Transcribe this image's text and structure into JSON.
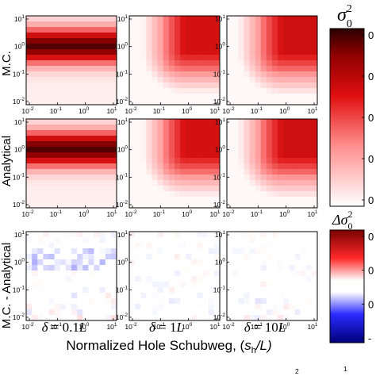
{
  "figure": {
    "xlabel_prefix": "Normalized Hole Schubweg, (",
    "xlabel_symbol": "s",
    "xlabel_sub": "h",
    "xlabel_suffix": "/L)",
    "rows": [
      "M.C.",
      "Analytical",
      "M.C. - Analytical"
    ],
    "columns": [
      {
        "delta": "δ",
        "eq": " = ",
        "value": "0.1",
        "unit": "L"
      },
      {
        "delta": "δ",
        "eq": " = ",
        "value": "1",
        "unit": "L"
      },
      {
        "delta": "δ",
        "eq": " = ",
        "value": "10",
        "unit": "L"
      }
    ],
    "colorbar_top": {
      "title": "σ",
      "sup": "2",
      "sub": "0",
      "ticks": [
        "0",
        "0",
        "0",
        "0",
        "0"
      ]
    },
    "colorbar_bottom": {
      "title": "Δσ",
      "sup": "2",
      "sub": "0",
      "ticks": [
        "0",
        "0",
        "0",
        "-"
      ]
    },
    "bottom_strip": [
      "2",
      "1"
    ]
  },
  "chart_data": {
    "type": "heatmap",
    "xscale": "log",
    "yscale": "log",
    "x_ticks": [
      "10^-2",
      "10^-1",
      "10^0",
      "10^1"
    ],
    "y_ticks": [
      "10^1",
      "10^0",
      "10^-1",
      "10^-2"
    ],
    "xlim": [
      0.01,
      10
    ],
    "ylim": [
      0.01,
      10
    ],
    "grid_size": 16,
    "colormap_top": "white-red-darkred",
    "colormap_bottom": "blue-white-red (diverging)",
    "panels": [
      {
        "row": "M.C.",
        "column": "δ = 0.1L",
        "pattern": "horizontal band peaking at y ≈ 10^0"
      },
      {
        "row": "M.C.",
        "column": "δ = 1L",
        "pattern": "high except bottom-left corner"
      },
      {
        "row": "M.C.",
        "column": "δ = 10L",
        "pattern": "high except bottom-left corner"
      },
      {
        "row": "Analytical",
        "column": "δ = 0.1L",
        "pattern": "horizontal band peaking at y ≈ 10^0"
      },
      {
        "row": "Analytical",
        "column": "δ = 1L",
        "pattern": "high except bottom-left corner"
      },
      {
        "row": "Analytical",
        "column": "δ = 10L",
        "pattern": "high except bottom-left corner"
      },
      {
        "row": "M.C. - Analytical",
        "column": "δ = 0.1L",
        "pattern": "small residual noise near zero"
      },
      {
        "row": "M.C. - Analytical",
        "column": "δ = 1L",
        "pattern": "small residual noise near zero"
      },
      {
        "row": "M.C. - Analytical",
        "column": "δ = 10L",
        "pattern": "small residual noise near zero"
      }
    ]
  }
}
